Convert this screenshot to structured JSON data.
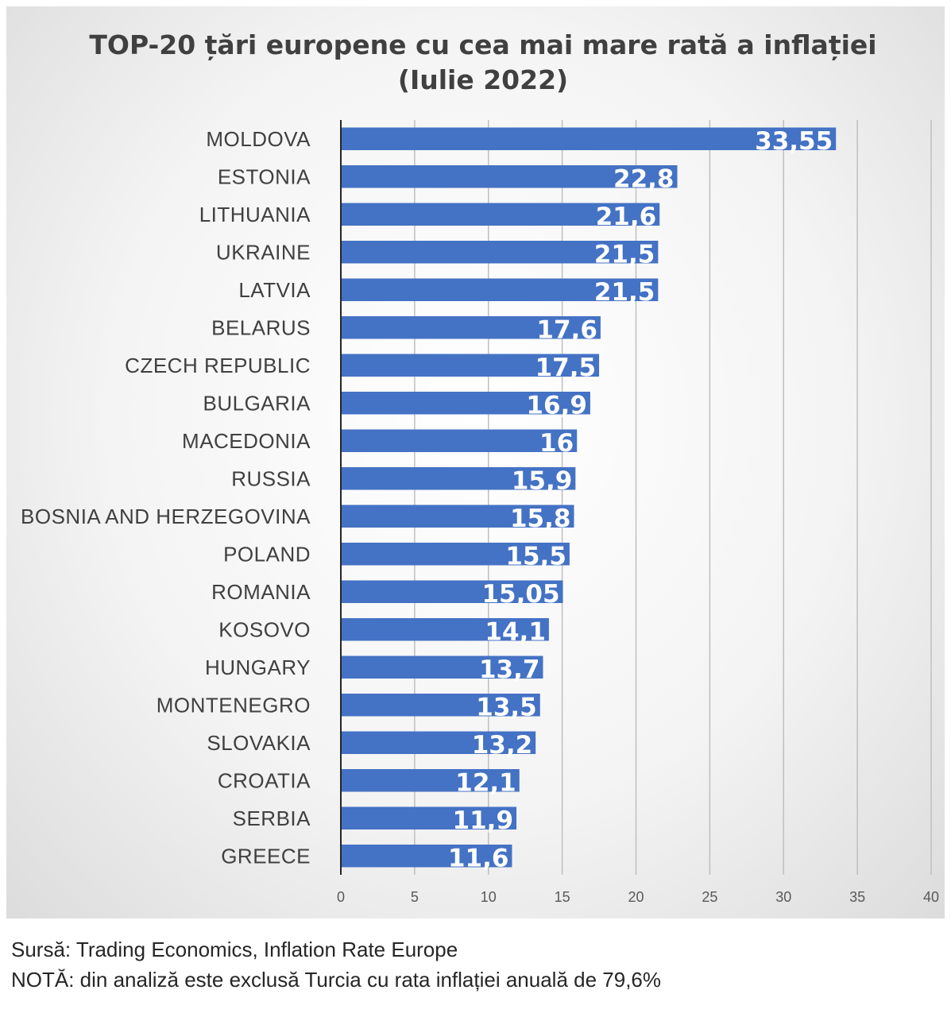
{
  "chart_data": {
    "type": "bar",
    "orientation": "horizontal",
    "title_line1": "TOP-20 țări europene cu cea mai mare rată a inflației",
    "title_line2": "(Iulie 2022)",
    "categories": [
      "MOLDOVA",
      "ESTONIA",
      "LITHUANIA",
      "UKRAINE",
      "LATVIA",
      "BELARUS",
      "CZECH REPUBLIC",
      "BULGARIA",
      "MACEDONIA",
      "RUSSIA",
      "BOSNIA AND HERZEGOVINA",
      "POLAND",
      "ROMANIA",
      "KOSOVO",
      "HUNGARY",
      "MONTENEGRO",
      "SLOVAKIA",
      "CROATIA",
      "SERBIA",
      "GREECE"
    ],
    "values": [
      33.55,
      22.8,
      21.6,
      21.5,
      21.5,
      17.6,
      17.5,
      16.9,
      16,
      15.9,
      15.8,
      15.5,
      15.05,
      14.1,
      13.7,
      13.5,
      13.2,
      12.1,
      11.9,
      11.6
    ],
    "value_labels": [
      "33,55",
      "22,8",
      "21,6",
      "21,5",
      "21,5",
      "17,6",
      "17,5",
      "16,9",
      "16",
      "15,9",
      "15,8",
      "15,5",
      "15,05",
      "14,1",
      "13,7",
      "13,5",
      "13,2",
      "12,1",
      "11,9",
      "11,6"
    ],
    "xlim": [
      0,
      40
    ],
    "xticks": [
      0,
      5,
      10,
      15,
      20,
      25,
      30,
      35,
      40
    ],
    "xlabel": "",
    "ylabel": "",
    "grid": "vertical",
    "bar_color": "#4472c4"
  },
  "footer": {
    "source": "Sursă: Trading Economics, Inflation Rate Europe",
    "note": "NOTĂ: din analiză este exclusă Turcia cu rata inflației anuală de 79,6%"
  }
}
